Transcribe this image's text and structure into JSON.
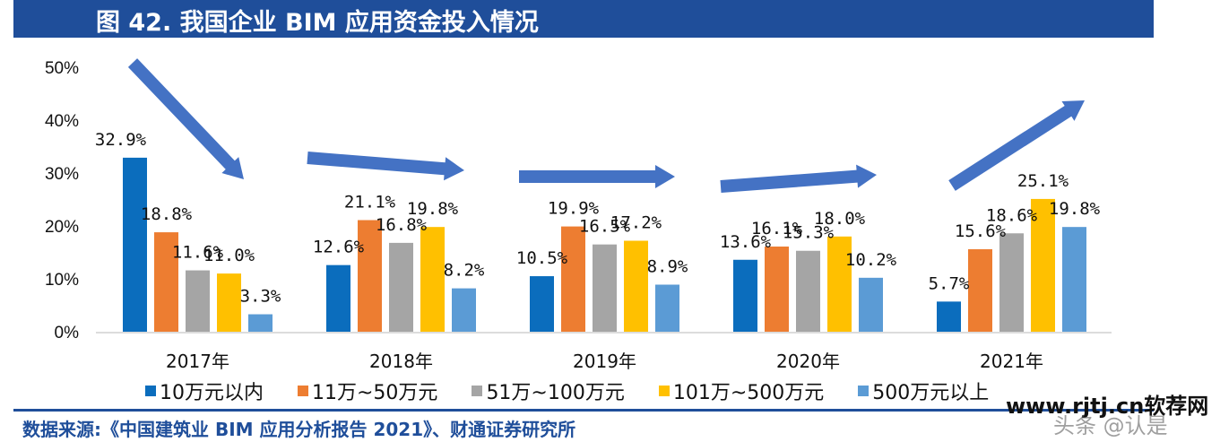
{
  "header": {
    "title": "图 42. 我国企业 BIM 应用资金投入情况"
  },
  "footer": {
    "source": "数据来源:《中国建筑业 BIM 应用分析报告 2021》、财通证券研究所"
  },
  "watermark": {
    "line1": "www.rjtj.cn软荐网",
    "line2": "头条 @认是"
  },
  "chart_data": {
    "type": "bar",
    "title": "我国企业 BIM 应用资金投入情况",
    "xlabel": "",
    "ylabel": "",
    "ylim": [
      0,
      50
    ],
    "yticks": [
      "0%",
      "10%",
      "20%",
      "30%",
      "40%",
      "50%"
    ],
    "ytick_values": [
      0,
      10,
      20,
      30,
      40,
      50
    ],
    "grid": false,
    "legend_position": "bottom",
    "categories": [
      "2017年",
      "2018年",
      "2019年",
      "2020年",
      "2021年"
    ],
    "series": [
      {
        "name": "10万元以内",
        "color": "#0b6dbd",
        "values": [
          32.9,
          12.6,
          10.5,
          13.6,
          5.7
        ],
        "labels": [
          "32.9%",
          "12.6%",
          "10.5%",
          "13.6%",
          "5.7%"
        ]
      },
      {
        "name": "11万~50万元",
        "color": "#ed7d31",
        "values": [
          18.8,
          21.1,
          19.9,
          16.1,
          15.6
        ],
        "labels": [
          "18.8%",
          "21.1%",
          "19.9%",
          "16.1%",
          "15.6%"
        ]
      },
      {
        "name": "51万~100万元",
        "color": "#a5a5a5",
        "values": [
          11.6,
          16.8,
          16.5,
          15.3,
          18.6
        ],
        "labels": [
          "11.6%",
          "16.8%",
          "16.5%",
          "15.3%",
          "18.6%"
        ]
      },
      {
        "name": "101万~500万元",
        "color": "#ffc000",
        "values": [
          11.0,
          19.8,
          17.2,
          18.0,
          25.1
        ],
        "labels": [
          "11.0%",
          "19.8%",
          "17.2%",
          "18.0%",
          "25.1%"
        ]
      },
      {
        "name": "500万元以上",
        "color": "#5b9bd5",
        "values": [
          3.3,
          8.2,
          8.9,
          10.2,
          19.8
        ],
        "labels": [
          "3.3%",
          "8.2%",
          "8.9%",
          "10.2%",
          "19.8%"
        ]
      }
    ],
    "annotations": [
      {
        "type": "trend-arrow",
        "year": "2017年",
        "direction": "down"
      },
      {
        "type": "trend-arrow",
        "year": "2018年",
        "direction": "slightly-down"
      },
      {
        "type": "trend-arrow",
        "year": "2019年",
        "direction": "flat"
      },
      {
        "type": "trend-arrow",
        "year": "2020年",
        "direction": "slightly-up"
      },
      {
        "type": "trend-arrow",
        "year": "2021年",
        "direction": "up"
      }
    ],
    "arrow_color": "#4472c4"
  }
}
